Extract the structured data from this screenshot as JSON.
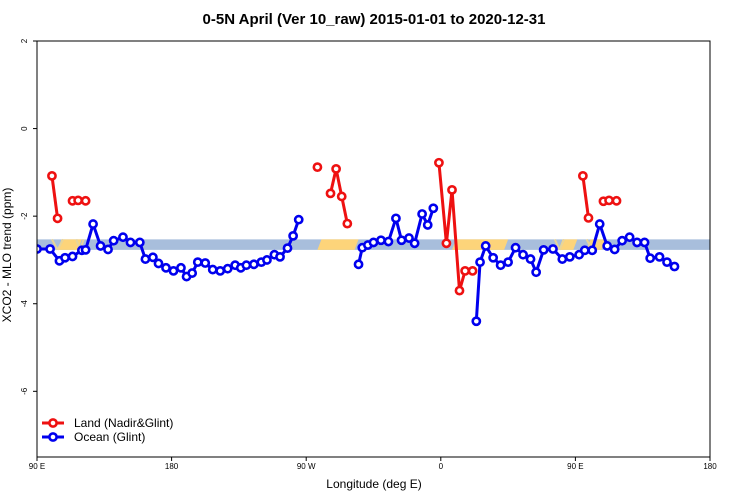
{
  "chart_data": {
    "type": "line",
    "title": "0-5N April (Ver 10_raw)   2015-01-01 to 2020-12-31",
    "xlabel": "Longitude (deg E)",
    "ylabel": "XCO2 - MLO trend (ppm)",
    "xlim": [
      90,
      450
    ],
    "ylim": [
      -7.5,
      2.0
    ],
    "x_ticks": [
      {
        "value": 90,
        "label": "90 E"
      },
      {
        "value": 162,
        "label": "180"
      },
      {
        "value": 234,
        "label": "90 W"
      },
      {
        "value": 306,
        "label": "0"
      },
      {
        "value": 378,
        "label": "90 E"
      },
      {
        "value": 450,
        "label": "180"
      }
    ],
    "y_ticks": [
      {
        "value": 2,
        "label": "2"
      },
      {
        "value": 0,
        "label": "0"
      },
      {
        "value": -2,
        "label": "-2"
      },
      {
        "value": -4,
        "label": "-4"
      },
      {
        "value": -6,
        "label": "-6"
      }
    ],
    "band": {
      "y_low": -2.77,
      "y_high": -2.53,
      "color": "#a8bedc",
      "highlight_color": "#fdd47a",
      "highlights": [
        [
          101,
          114
        ],
        [
          240,
          262
        ],
        [
          312,
          342
        ],
        [
          369,
          379
        ],
        [
          384,
          394
        ]
      ],
      "hatch_color": "#e8d59a",
      "hatches": [
        [
          98,
          104
        ],
        [
          111,
          115
        ],
        [
          367,
          372
        ],
        [
          384,
          390
        ]
      ]
    },
    "legend": {
      "position": "bottom-left",
      "entries": [
        {
          "label": "Land (Nadir&Glint)",
          "color": "#ee1111"
        },
        {
          "label": "Ocean (Glint)",
          "color": "#0000ee"
        }
      ]
    },
    "series": [
      {
        "name": "Land (Nadir&Glint)",
        "color": "#ee1111",
        "segments": [
          [
            [
              98,
              -1.08
            ],
            [
              101,
              -2.05
            ]
          ],
          [
            [
              109,
              -1.65
            ],
            [
              112,
              -1.64
            ],
            [
              116,
              -1.65
            ]
          ],
          [
            [
              240,
              -0.88
            ]
          ],
          [
            [
              247,
              -1.48
            ],
            [
              250,
              -0.92
            ],
            [
              253,
              -1.55
            ],
            [
              256,
              -2.17
            ]
          ],
          [
            [
              305,
              -0.78
            ],
            [
              309,
              -2.62
            ],
            [
              312,
              -1.4
            ],
            [
              316,
              -3.7
            ],
            [
              319,
              -3.25
            ],
            [
              323,
              -3.25
            ]
          ],
          [
            [
              382,
              -1.08
            ],
            [
              385,
              -2.04
            ]
          ],
          [
            [
              393,
              -1.66
            ],
            [
              396,
              -1.64
            ],
            [
              400,
              -1.65
            ]
          ]
        ]
      },
      {
        "name": "Ocean (Glint)",
        "color": "#0000ee",
        "segments": [
          [
            [
              90,
              -2.75
            ],
            [
              97,
              -2.75
            ],
            [
              102,
              -3.02
            ],
            [
              105,
              -2.95
            ],
            [
              109,
              -2.92
            ],
            [
              114,
              -2.78
            ],
            [
              116,
              -2.77
            ],
            [
              120,
              -2.18
            ],
            [
              124,
              -2.68
            ],
            [
              128,
              -2.76
            ],
            [
              131,
              -2.56
            ],
            [
              136,
              -2.48
            ],
            [
              140,
              -2.6
            ],
            [
              145,
              -2.6
            ],
            [
              148,
              -2.98
            ],
            [
              152,
              -2.94
            ],
            [
              155,
              -3.08
            ],
            [
              159,
              -3.18
            ],
            [
              163,
              -3.25
            ],
            [
              167,
              -3.18
            ],
            [
              170,
              -3.38
            ],
            [
              173,
              -3.3
            ],
            [
              176,
              -3.05
            ],
            [
              180,
              -3.07
            ],
            [
              184,
              -3.22
            ],
            [
              188,
              -3.25
            ],
            [
              192,
              -3.2
            ],
            [
              196,
              -3.12
            ],
            [
              199,
              -3.18
            ],
            [
              202,
              -3.12
            ],
            [
              206,
              -3.1
            ],
            [
              210,
              -3.05
            ],
            [
              213,
              -3.0
            ],
            [
              217,
              -2.88
            ],
            [
              220,
              -2.93
            ],
            [
              224,
              -2.73
            ],
            [
              227,
              -2.45
            ],
            [
              230,
              -2.08
            ]
          ],
          [
            [
              262,
              -3.1
            ],
            [
              264,
              -2.72
            ],
            [
              267,
              -2.66
            ],
            [
              270,
              -2.6
            ],
            [
              274,
              -2.55
            ],
            [
              278,
              -2.58
            ],
            [
              282,
              -2.05
            ],
            [
              285,
              -2.55
            ],
            [
              289,
              -2.5
            ],
            [
              292,
              -2.62
            ],
            [
              296,
              -1.95
            ],
            [
              299,
              -2.2
            ],
            [
              302,
              -1.82
            ]
          ],
          [
            [
              325,
              -4.4
            ],
            [
              327,
              -3.05
            ],
            [
              330,
              -2.68
            ],
            [
              334,
              -2.95
            ],
            [
              338,
              -3.12
            ],
            [
              342,
              -3.05
            ],
            [
              346,
              -2.72
            ],
            [
              350,
              -2.88
            ],
            [
              354,
              -2.98
            ],
            [
              357,
              -3.28
            ],
            [
              361,
              -2.77
            ],
            [
              366,
              -2.75
            ],
            [
              371,
              -2.98
            ],
            [
              375,
              -2.93
            ],
            [
              380,
              -2.88
            ],
            [
              383,
              -2.78
            ],
            [
              387,
              -2.78
            ],
            [
              391,
              -2.18
            ],
            [
              395,
              -2.68
            ],
            [
              399,
              -2.76
            ],
            [
              403,
              -2.56
            ],
            [
              407,
              -2.48
            ],
            [
              411,
              -2.6
            ],
            [
              415,
              -2.6
            ],
            [
              418,
              -2.96
            ],
            [
              423,
              -2.93
            ],
            [
              427,
              -3.05
            ],
            [
              431,
              -3.15
            ]
          ]
        ]
      }
    ]
  }
}
